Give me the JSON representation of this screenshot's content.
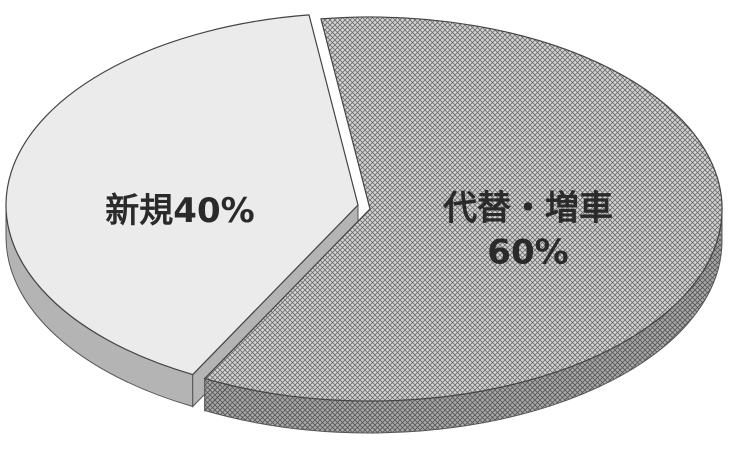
{
  "chart_data": {
    "type": "pie",
    "categories": [
      "新規",
      "代替・増車"
    ],
    "values": [
      40,
      60
    ],
    "value_labels": [
      "40%",
      "60%"
    ],
    "colors": [
      "#ebebeb",
      "#d4d4d4"
    ]
  }
}
